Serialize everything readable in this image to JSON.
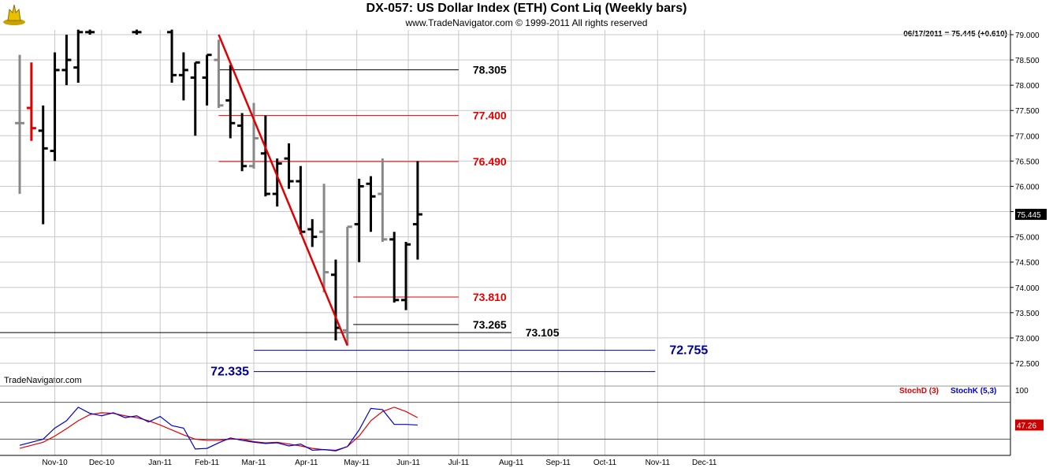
{
  "header": {
    "title": "DX-057:  US Dollar Index (ETH) Cont Liq  (Weekly bars)",
    "subtitle": "www.TradeNavigator.com © 1999-2011 All rights reserved",
    "readout": "06/17/2011 = 75.445 (+0.610)",
    "brand": "TradeNavigator.com"
  },
  "colors": {
    "bar_up": "#000000",
    "bar_down": "#888888",
    "bar_highlight": "#e00000",
    "trendline": "#e00000",
    "level_black": "#000000",
    "level_red": "#e00000",
    "level_blue": "#00008b",
    "stoch_d": "#e00000",
    "stoch_k": "#0000cc",
    "grid": "#c8c8c8",
    "last_price_bg": "#000000"
  },
  "chart_data": [
    {
      "type": "bar",
      "subtype": "ohlc",
      "title": "DX-057:  US Dollar Index (ETH) Cont Liq  (Weekly bars)",
      "last_price_label": "75.445",
      "ylim": [
        72.2,
        79.1
      ],
      "y_ticks": [
        "72.500",
        "73.000",
        "73.500",
        "74.000",
        "74.500",
        "75.000",
        "75.500",
        "76.000",
        "76.500",
        "77.000",
        "77.500",
        "78.000",
        "78.500",
        "79.000"
      ],
      "x_ticks": [
        {
          "label": "Nov-10",
          "w": 3.0
        },
        {
          "label": "Dec-10",
          "w": 7.0
        },
        {
          "label": "Jan-11",
          "w": 12.0
        },
        {
          "label": "Feb-11",
          "w": 16.0
        },
        {
          "label": "Mar-11",
          "w": 20.0
        },
        {
          "label": "Apr-11",
          "w": 24.5
        },
        {
          "label": "May-11",
          "w": 28.8
        },
        {
          "label": "Jun-11",
          "w": 33.2
        },
        {
          "label": "Jul-11",
          "w": 37.5
        },
        {
          "label": "Aug-11",
          "w": 42.0
        },
        {
          "label": "Sep-11",
          "w": 46.0
        },
        {
          "label": "Oct-11",
          "w": 50.0
        },
        {
          "label": "Nov-11",
          "w": 54.5
        },
        {
          "label": "Dec-11",
          "w": 58.5
        }
      ],
      "x_range": [
        0,
        61
      ],
      "bars": [
        {
          "w": 0,
          "o": 77.25,
          "h": 78.6,
          "l": 75.85,
          "c": 77.25,
          "col": "down"
        },
        {
          "w": 1,
          "o": 77.55,
          "h": 78.45,
          "l": 76.9,
          "c": 77.15,
          "col": "highlight"
        },
        {
          "w": 2,
          "o": 77.1,
          "h": 77.6,
          "l": 75.25,
          "c": 76.75,
          "col": "up"
        },
        {
          "w": 3,
          "o": 76.7,
          "h": 78.65,
          "l": 76.5,
          "c": 78.3,
          "col": "up"
        },
        {
          "w": 4,
          "o": 78.3,
          "h": 79.0,
          "l": 78.0,
          "c": 78.5,
          "col": "up"
        },
        {
          "w": 5,
          "o": 78.35,
          "h": 79.1,
          "l": 78.05,
          "c": 79.05,
          "col": "up"
        },
        {
          "w": 6,
          "o": 79.05,
          "h": 79.1,
          "l": 79.0,
          "c": 79.05,
          "col": "up"
        },
        {
          "w": 10,
          "o": 79.05,
          "h": 79.1,
          "l": 79.0,
          "c": 79.05,
          "col": "up"
        },
        {
          "w": 13,
          "o": 79.05,
          "h": 79.1,
          "l": 78.05,
          "c": 78.2,
          "col": "up"
        },
        {
          "w": 14,
          "o": 78.2,
          "h": 78.65,
          "l": 77.7,
          "c": 78.3,
          "col": "up"
        },
        {
          "w": 15,
          "o": 78.15,
          "h": 78.45,
          "l": 77.0,
          "c": 78.45,
          "col": "up"
        },
        {
          "w": 16,
          "o": 78.15,
          "h": 78.6,
          "l": 77.6,
          "c": 78.6,
          "col": "up"
        },
        {
          "w": 17,
          "o": 78.5,
          "h": 78.9,
          "l": 77.55,
          "c": 77.6,
          "col": "down"
        },
        {
          "w": 18,
          "o": 77.7,
          "h": 78.4,
          "l": 76.95,
          "c": 77.25,
          "col": "up"
        },
        {
          "w": 19,
          "o": 77.2,
          "h": 77.45,
          "l": 76.3,
          "c": 76.4,
          "col": "up"
        },
        {
          "w": 20,
          "o": 76.4,
          "h": 77.65,
          "l": 76.35,
          "c": 76.95,
          "col": "down"
        },
        {
          "w": 21,
          "o": 76.65,
          "h": 77.4,
          "l": 75.8,
          "c": 75.85,
          "col": "up"
        },
        {
          "w": 22,
          "o": 75.85,
          "h": 76.55,
          "l": 75.6,
          "c": 76.45,
          "col": "up"
        },
        {
          "w": 23,
          "o": 76.55,
          "h": 76.85,
          "l": 75.95,
          "c": 76.1,
          "col": "up"
        },
        {
          "w": 24,
          "o": 76.1,
          "h": 76.4,
          "l": 75.05,
          "c": 75.1,
          "col": "up"
        },
        {
          "w": 25,
          "o": 75.15,
          "h": 75.35,
          "l": 74.8,
          "c": 75.0,
          "col": "up"
        },
        {
          "w": 26,
          "o": 75.1,
          "h": 76.05,
          "l": 73.9,
          "c": 74.3,
          "col": "down"
        },
        {
          "w": 27,
          "o": 74.25,
          "h": 74.55,
          "l": 72.95,
          "c": 73.2,
          "col": "up"
        },
        {
          "w": 28,
          "o": 73.15,
          "h": 75.2,
          "l": 72.85,
          "c": 75.2,
          "col": "down"
        },
        {
          "w": 29,
          "o": 75.25,
          "h": 76.15,
          "l": 74.5,
          "c": 76.0,
          "col": "up"
        },
        {
          "w": 30,
          "o": 76.05,
          "h": 76.2,
          "l": 75.1,
          "c": 75.8,
          "col": "up"
        },
        {
          "w": 31,
          "o": 75.85,
          "h": 76.55,
          "l": 74.9,
          "c": 74.95,
          "col": "down"
        },
        {
          "w": 32,
          "o": 74.95,
          "h": 75.1,
          "l": 73.7,
          "c": 73.75,
          "col": "up"
        },
        {
          "w": 33,
          "o": 73.75,
          "h": 74.9,
          "l": 73.55,
          "c": 74.85,
          "col": "up"
        },
        {
          "w": 34,
          "o": 75.25,
          "h": 76.5,
          "l": 74.55,
          "c": 75.445,
          "col": "up"
        }
      ],
      "trendline": {
        "from": {
          "w": 17,
          "v": 79.0
        },
        "to": {
          "w": 28,
          "v": 72.85
        }
      },
      "levels": [
        {
          "label": "78.305",
          "value": 78.305,
          "color": "black",
          "from_w": 17,
          "to_w": 37.5
        },
        {
          "label": "77.400",
          "value": 77.4,
          "color": "red",
          "from_w": 17,
          "to_w": 37.5
        },
        {
          "label": "76.490",
          "value": 76.49,
          "color": "red",
          "from_w": 17,
          "to_w": 37.5
        },
        {
          "label": "73.810",
          "value": 73.81,
          "color": "red",
          "from_w": 28.5,
          "to_w": 37.5
        },
        {
          "label": "73.265",
          "value": 73.265,
          "color": "black",
          "from_w": 28.5,
          "to_w": 37.5
        },
        {
          "label": "73.105",
          "value": 73.105,
          "color": "black",
          "from_w": -2,
          "to_w": 42
        },
        {
          "label": "72.755",
          "value": 72.755,
          "color": "blue",
          "from_w": 20,
          "to_w": 54.3
        },
        {
          "label": "72.335",
          "value": 72.335,
          "color": "blue",
          "from_w": 20,
          "to_w": 54.3
        }
      ]
    },
    {
      "type": "line",
      "ylim": [
        -3,
        103
      ],
      "y_tick_label": "100",
      "reference_lines": [
        80,
        20
      ],
      "last_value_label": "47.26",
      "series": [
        {
          "name": "StochD (3)",
          "color": "stoch_d",
          "x": [
            0,
            1,
            2,
            3,
            4,
            5,
            6,
            7,
            8,
            9,
            10,
            11,
            12,
            13,
            14,
            15,
            16,
            17,
            18,
            19,
            20,
            21,
            22,
            23,
            24,
            25,
            26,
            27,
            28,
            29,
            30,
            31,
            32,
            33,
            34
          ],
          "values": [
            5,
            10,
            15,
            25,
            37,
            50,
            60,
            63,
            62,
            58,
            55,
            50,
            43,
            35,
            27,
            20,
            18,
            18,
            20,
            20,
            16,
            14,
            15,
            12,
            9,
            5,
            3,
            2,
            8,
            25,
            50,
            65,
            72,
            65,
            55
          ]
        },
        {
          "name": "StochK (5,3)",
          "color": "stoch_k",
          "x": [
            0,
            1,
            2,
            3,
            4,
            5,
            6,
            7,
            8,
            9,
            10,
            11,
            12,
            13,
            14,
            15,
            16,
            17,
            18,
            19,
            20,
            21,
            22,
            23,
            24,
            25,
            26,
            27,
            28,
            29,
            30,
            31,
            32,
            33,
            34
          ],
          "values": [
            10,
            15,
            20,
            38,
            50,
            72,
            62,
            58,
            63,
            55,
            58,
            48,
            57,
            42,
            38,
            4,
            5,
            14,
            22,
            18,
            15,
            13,
            14,
            9,
            12,
            2,
            3,
            1,
            8,
            35,
            70,
            68,
            44,
            44,
            43
          ]
        }
      ]
    }
  ]
}
